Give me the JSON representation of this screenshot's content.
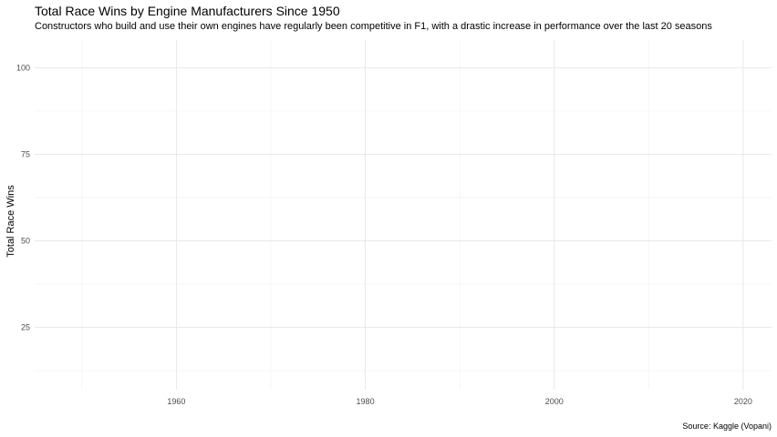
{
  "chart_data": {
    "type": "line",
    "title": "Total Race Wins by Engine Manufacturers Since 1950",
    "subtitle": "Constructors who build and use their own engines have regularly been competitive in F1, with a drastic increase in performance over the last 20 seasons",
    "caption": "Source: Kaggle (Vopani)",
    "xlabel": "",
    "ylabel": "Total Race Wins",
    "xlim": [
      1945,
      2023
    ],
    "ylim": [
      7,
      108
    ],
    "x_ticks": [
      1960,
      1980,
      2000,
      2020
    ],
    "x_minor_ticks": [
      1950,
      1970,
      1990,
      2010
    ],
    "y_ticks": [
      25,
      50,
      75,
      100
    ],
    "y_minor_ticks": [
      12.5,
      37.5,
      62.5,
      87.5
    ],
    "grid": true,
    "legend": "none",
    "series": []
  }
}
